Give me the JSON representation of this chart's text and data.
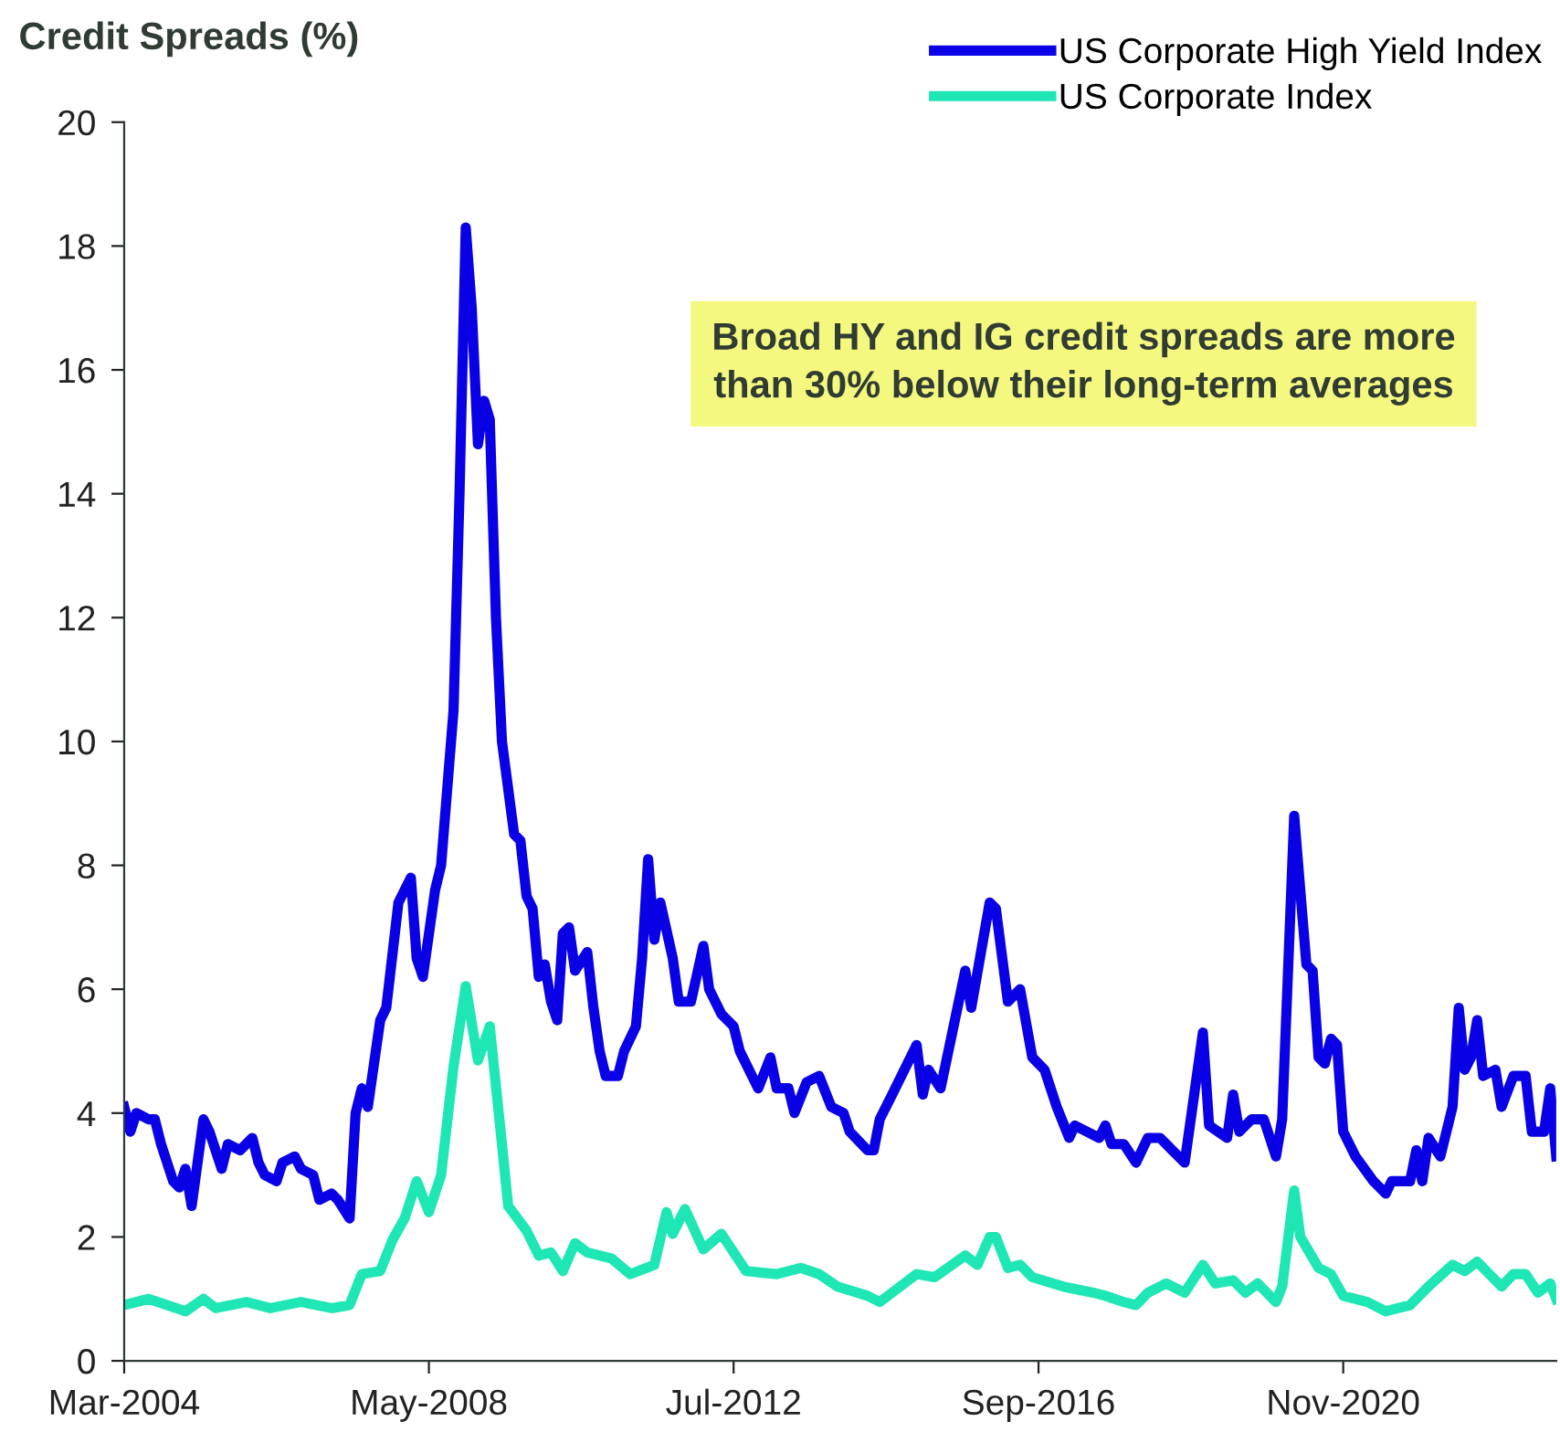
{
  "chart_data": {
    "type": "line",
    "title": "Credit Spreads (%)",
    "annotations": [
      "Broad HY and IG credit spreads are more\nthan 30% below their long-term averages"
    ],
    "xlim": [
      "2004-03",
      "2023-10"
    ],
    "xticks": [
      {
        "value": "2004-03",
        "label": "Mar-2004"
      },
      {
        "value": "2008-05",
        "label": "May-2008"
      },
      {
        "value": "2012-07",
        "label": "Jul-2012"
      },
      {
        "value": "2016-09",
        "label": "Sep-2016"
      },
      {
        "value": "2020-11",
        "label": "Nov-2020"
      }
    ],
    "ylim": [
      0,
      20
    ],
    "yticks": [
      0,
      2,
      4,
      6,
      8,
      10,
      12,
      14,
      16,
      18,
      20
    ],
    "grid": false,
    "legend": "top right",
    "marker": "none",
    "line_style": "solid",
    "series": [
      {
        "name": "US Corporate High Yield Index",
        "color": "#0a00e6",
        "x": [
          "2004-03",
          "2004-04",
          "2004-05",
          "2004-07",
          "2004-08",
          "2004-09",
          "2004-11",
          "2004-12",
          "2005-01",
          "2005-02",
          "2005-04",
          "2005-05",
          "2005-07",
          "2005-08",
          "2005-10",
          "2005-12",
          "2006-01",
          "2006-02",
          "2006-04",
          "2006-05",
          "2006-07",
          "2006-08",
          "2006-10",
          "2006-11",
          "2007-01",
          "2007-02",
          "2007-04",
          "2007-05",
          "2007-06",
          "2007-07",
          "2007-09",
          "2007-10",
          "2007-12",
          "2008-02",
          "2008-03",
          "2008-04",
          "2008-06",
          "2008-07",
          "2008-09",
          "2008-10",
          "2008-11",
          "2008-12",
          "2009-01",
          "2009-02",
          "2009-03",
          "2009-04",
          "2009-05",
          "2009-07",
          "2009-08",
          "2009-09",
          "2009-10",
          "2009-11",
          "2009-12",
          "2010-01",
          "2010-02",
          "2010-03",
          "2010-04",
          "2010-05",
          "2010-07",
          "2010-08",
          "2010-09",
          "2010-10",
          "2010-12",
          "2011-01",
          "2011-03",
          "2011-04",
          "2011-05",
          "2011-06",
          "2011-07",
          "2011-09",
          "2011-10",
          "2011-12",
          "2012-02",
          "2012-03",
          "2012-05",
          "2012-07",
          "2012-08",
          "2012-10",
          "2012-11",
          "2013-01",
          "2013-02",
          "2013-04",
          "2013-05",
          "2013-07",
          "2013-09",
          "2013-11",
          "2014-01",
          "2014-02",
          "2014-05",
          "2014-06",
          "2014-07",
          "2014-09",
          "2015-01",
          "2015-02",
          "2015-03",
          "2015-05",
          "2015-09",
          "2015-10",
          "2016-01",
          "2016-02",
          "2016-04",
          "2016-06",
          "2016-08",
          "2016-10",
          "2016-12",
          "2017-02",
          "2017-03",
          "2017-07",
          "2017-08",
          "2017-09",
          "2017-11",
          "2018-01",
          "2018-03",
          "2018-05",
          "2018-07",
          "2018-09",
          "2018-12",
          "2019-01",
          "2019-04",
          "2019-05",
          "2019-06",
          "2019-08",
          "2019-10",
          "2019-12",
          "2020-01",
          "2020-03",
          "2020-05",
          "2020-06",
          "2020-07",
          "2020-08",
          "2020-09",
          "2020-10",
          "2020-11",
          "2021-01",
          "2021-04",
          "2021-06",
          "2021-07",
          "2021-10",
          "2021-11",
          "2021-12",
          "2022-01",
          "2022-03",
          "2022-05",
          "2022-06",
          "2022-07",
          "2022-08",
          "2022-09",
          "2022-10",
          "2022-12",
          "2023-01",
          "2023-03",
          "2023-05",
          "2023-06",
          "2023-08",
          "2023-09",
          "2023-10"
        ],
        "values": [
          4.1,
          3.7,
          4.0,
          3.9,
          3.9,
          3.5,
          2.9,
          2.8,
          3.1,
          2.5,
          3.9,
          3.7,
          3.1,
          3.5,
          3.4,
          3.6,
          3.2,
          3.0,
          2.9,
          3.2,
          3.3,
          3.1,
          3.0,
          2.6,
          2.7,
          2.6,
          2.3,
          4.0,
          4.4,
          4.1,
          5.5,
          5.7,
          7.4,
          7.8,
          6.5,
          6.2,
          7.6,
          8.0,
          10.5,
          14.0,
          18.3,
          17.0,
          14.8,
          15.5,
          15.2,
          12.0,
          10.0,
          8.5,
          8.4,
          7.5,
          7.3,
          6.2,
          6.4,
          5.8,
          5.5,
          6.9,
          7.0,
          6.3,
          6.6,
          5.7,
          5.0,
          4.6,
          4.6,
          5.0,
          5.4,
          6.5,
          8.1,
          6.8,
          7.4,
          6.5,
          5.8,
          5.8,
          6.7,
          6.0,
          5.6,
          5.4,
          5.0,
          4.6,
          4.4,
          4.9,
          4.4,
          4.4,
          4.0,
          4.5,
          4.6,
          4.1,
          4.0,
          3.7,
          3.4,
          3.4,
          3.9,
          4.3,
          5.1,
          4.3,
          4.7,
          4.4,
          6.3,
          5.7,
          7.4,
          7.3,
          5.8,
          6.0,
          4.9,
          4.7,
          4.1,
          3.6,
          3.8,
          3.6,
          3.8,
          3.5,
          3.5,
          3.2,
          3.6,
          3.6,
          3.4,
          3.2,
          5.3,
          3.8,
          3.6,
          4.3,
          3.7,
          3.9,
          3.9,
          3.3,
          3.9,
          8.8,
          6.4,
          6.3,
          4.9,
          4.8,
          5.2,
          5.1,
          3.7,
          3.3,
          2.9,
          2.7,
          2.9,
          2.9,
          3.4,
          2.9,
          3.6,
          3.3,
          4.1,
          5.7,
          4.7,
          4.9,
          5.5,
          4.6,
          4.7,
          4.1,
          4.6,
          4.6,
          3.7,
          3.7,
          4.4,
          3.3
        ]
      },
      {
        "name": "US Corporate Index",
        "color": "#1ee6b4",
        "x": [
          "2004-03",
          "2004-07",
          "2005-01",
          "2005-04",
          "2005-06",
          "2005-11",
          "2006-03",
          "2006-08",
          "2007-01",
          "2007-04",
          "2007-06",
          "2007-09",
          "2007-11",
          "2008-01",
          "2008-03",
          "2008-05",
          "2008-07",
          "2008-09",
          "2008-11",
          "2009-01",
          "2009-03",
          "2009-05",
          "2009-06",
          "2009-09",
          "2009-11",
          "2010-01",
          "2010-03",
          "2010-05",
          "2010-07",
          "2010-11",
          "2011-02",
          "2011-06",
          "2011-08",
          "2011-09",
          "2011-11",
          "2012-02",
          "2012-05",
          "2012-09",
          "2013-02",
          "2013-06",
          "2013-09",
          "2013-12",
          "2014-05",
          "2014-07",
          "2015-01",
          "2015-04",
          "2015-09",
          "2015-11",
          "2016-01",
          "2016-02",
          "2016-04",
          "2016-06",
          "2016-08",
          "2017-01",
          "2017-06",
          "2017-08",
          "2017-11",
          "2018-01",
          "2018-03",
          "2018-06",
          "2018-09",
          "2018-12",
          "2019-02",
          "2019-05",
          "2019-07",
          "2019-09",
          "2019-12",
          "2020-01",
          "2020-03",
          "2020-04",
          "2020-07",
          "2020-09",
          "2020-11",
          "2021-03",
          "2021-06",
          "2021-10",
          "2022-01",
          "2022-05",
          "2022-07",
          "2022-09",
          "2023-01",
          "2023-03",
          "2023-05",
          "2023-07",
          "2023-09",
          "2023-10"
        ],
        "values": [
          0.9,
          1.0,
          0.8,
          1.0,
          0.85,
          0.95,
          0.85,
          0.95,
          0.85,
          0.9,
          1.4,
          1.45,
          1.95,
          2.3,
          2.9,
          2.4,
          3.0,
          4.75,
          6.05,
          4.85,
          5.4,
          3.5,
          2.5,
          2.1,
          1.7,
          1.75,
          1.45,
          1.9,
          1.75,
          1.65,
          1.4,
          1.55,
          2.4,
          2.05,
          2.45,
          1.8,
          2.05,
          1.45,
          1.4,
          1.5,
          1.4,
          1.2,
          1.05,
          0.95,
          1.4,
          1.35,
          1.7,
          1.55,
          2.0,
          2.0,
          1.5,
          1.55,
          1.35,
          1.2,
          1.1,
          1.05,
          0.95,
          0.9,
          1.1,
          1.25,
          1.1,
          1.55,
          1.25,
          1.3,
          1.1,
          1.25,
          0.95,
          1.2,
          2.75,
          2.0,
          1.5,
          1.4,
          1.05,
          0.95,
          0.8,
          0.9,
          1.2,
          1.55,
          1.45,
          1.6,
          1.2,
          1.4,
          1.4,
          1.1,
          1.25,
          1.0
        ]
      }
    ]
  }
}
